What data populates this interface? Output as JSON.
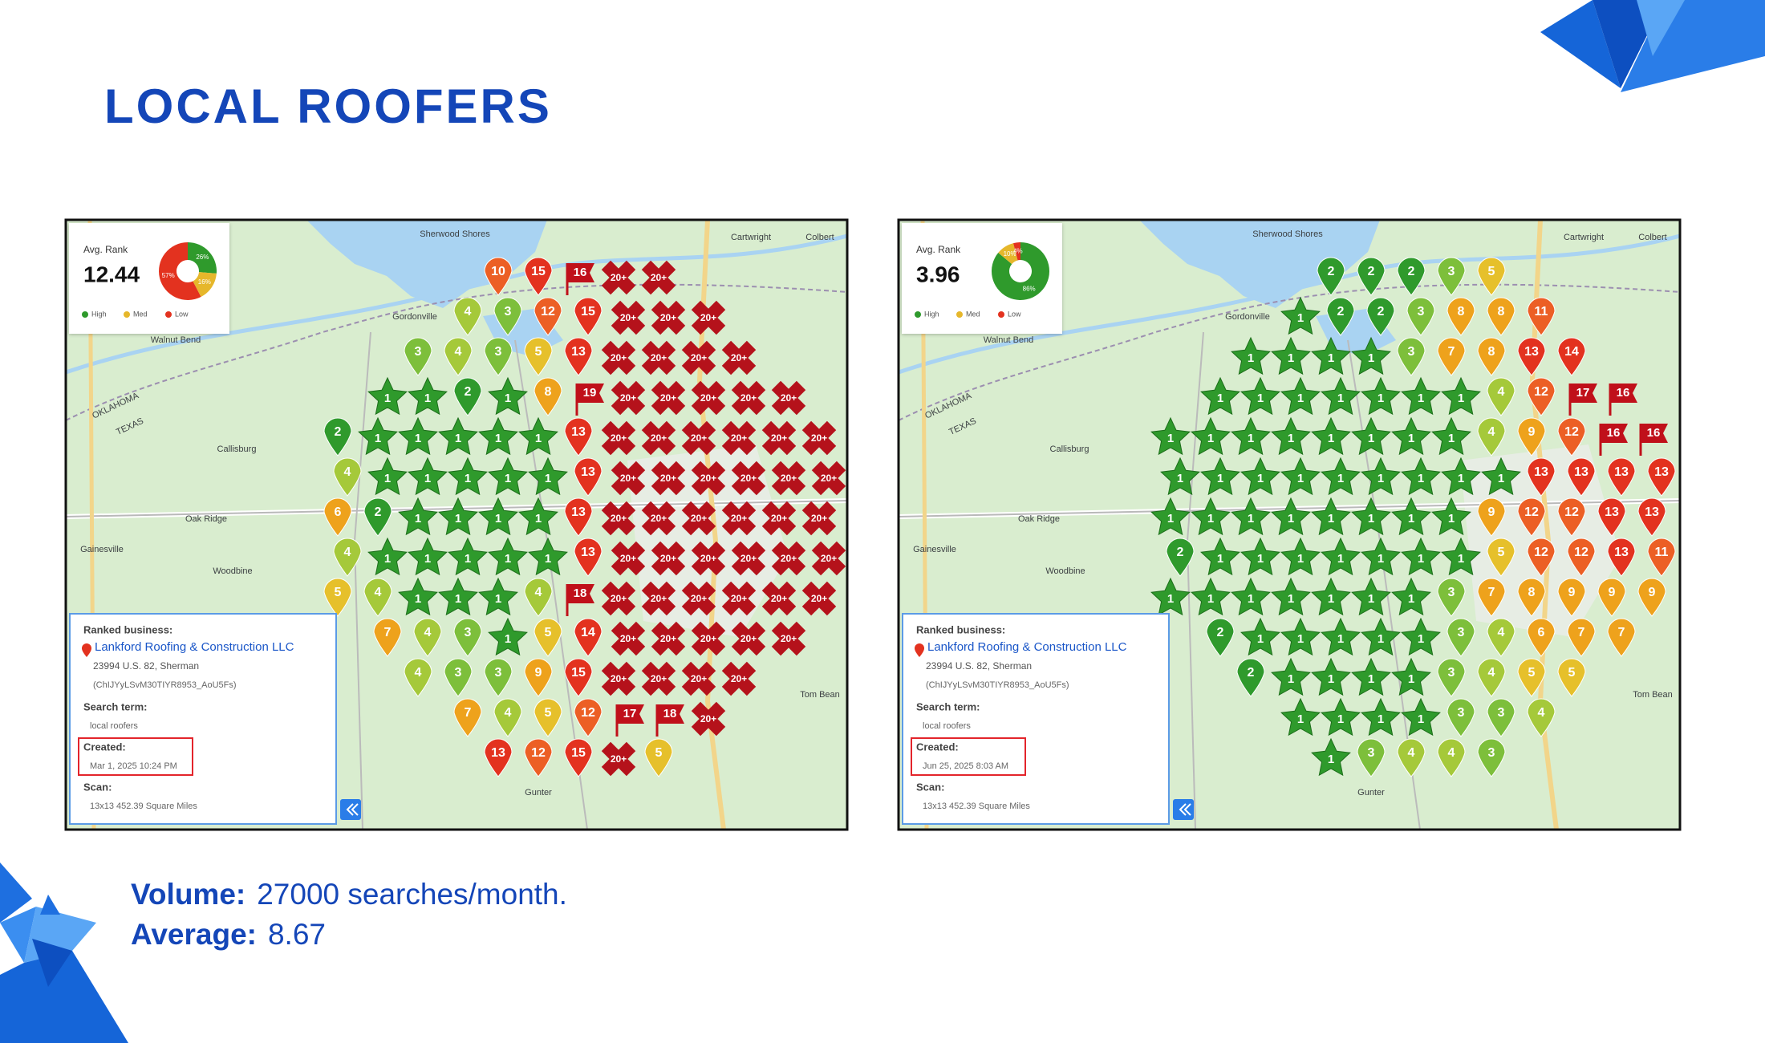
{
  "title": "LOCAL ROOFERS",
  "card_labels": {
    "avg_rank": "Avg. Rank",
    "ranked_business": "Ranked business:",
    "search_term": "Search term:",
    "created": "Created:",
    "scan": "Scan:"
  },
  "legend": [
    "High",
    "Med",
    "Low"
  ],
  "map_labels": [
    "Sherwood Shores",
    "Cartwright",
    "Colbert",
    "Gordonville",
    "Walnut Bend",
    "OKLAHOMA",
    "TEXAS",
    "Callisburg",
    "Oak Ridge",
    "Gainesville",
    "Woodbine",
    "Gunter",
    "Tom Bean"
  ],
  "panels": [
    {
      "avg_rank": "12.44",
      "donut": {
        "values": [
          26,
          16,
          57
        ],
        "value_labels": [
          "26%",
          "16%",
          "57%"
        ]
      },
      "business": "Lankford Roofing & Construction LLC",
      "address": "23994 U.S. 82, Sherman",
      "place_id": "(ChIJYyLSvM30TIYR8953_AoU5Fs)",
      "search_term": "local roofers",
      "created": "Mar 1, 2025 10:24 PM",
      "scan": "13x13 452.39 Square Miles",
      "grid": [
        [
          10,
          15,
          16,
          "20+",
          "20+"
        ],
        [
          4,
          3,
          12,
          15,
          "20+",
          "20+",
          "20+"
        ],
        [
          3,
          4,
          3,
          5,
          13,
          "20+",
          "20+",
          "20+",
          "20+"
        ],
        [
          1,
          1,
          2,
          1,
          8,
          19,
          "20+",
          "20+",
          "20+",
          "20+",
          "20+"
        ],
        [
          2,
          1,
          1,
          1,
          1,
          1,
          13,
          "20+",
          "20+",
          "20+",
          "20+",
          "20+",
          "20+"
        ],
        [
          4,
          1,
          1,
          1,
          1,
          1,
          13,
          "20+",
          "20+",
          "20+",
          "20+",
          "20+",
          "20+"
        ],
        [
          6,
          2,
          1,
          1,
          1,
          1,
          13,
          "20+",
          "20+",
          "20+",
          "20+",
          "20+",
          "20+"
        ],
        [
          4,
          1,
          1,
          1,
          1,
          1,
          13,
          "20+",
          "20+",
          "20+",
          "20+",
          "20+",
          "20+"
        ],
        [
          5,
          4,
          1,
          1,
          1,
          4,
          18,
          "20+",
          "20+",
          "20+",
          "20+",
          "20+",
          "20+"
        ],
        [
          7,
          4,
          3,
          1,
          5,
          14,
          "20+",
          "20+",
          "20+",
          "20+",
          "20+"
        ],
        [
          4,
          3,
          3,
          9,
          15,
          "20+",
          "20+",
          "20+",
          "20+"
        ],
        [
          7,
          4,
          5,
          12,
          17,
          18,
          "20+"
        ],
        [
          13,
          12,
          15,
          "20+",
          5
        ]
      ]
    },
    {
      "avg_rank": "3.96",
      "donut": {
        "values": [
          86,
          10,
          4
        ],
        "value_labels": [
          "86%",
          "10%",
          "4%"
        ]
      },
      "business": "Lankford Roofing & Construction LLC",
      "address": "23994 U.S. 82, Sherman",
      "place_id": "(ChIJYyLSvM30TIYR8953_AoU5Fs)",
      "search_term": "local roofers",
      "created": "Jun 25, 2025 8:03 AM",
      "scan": "13x13 452.39 Square Miles",
      "grid": [
        [
          2,
          2,
          2,
          3,
          5
        ],
        [
          1,
          2,
          2,
          3,
          8,
          8,
          11
        ],
        [
          1,
          1,
          1,
          1,
          3,
          7,
          8,
          13,
          14
        ],
        [
          1,
          1,
          1,
          1,
          1,
          1,
          1,
          4,
          12,
          17,
          16
        ],
        [
          1,
          1,
          1,
          1,
          1,
          1,
          1,
          1,
          4,
          9,
          12,
          16,
          16
        ],
        [
          1,
          1,
          1,
          1,
          1,
          1,
          1,
          1,
          1,
          13,
          13,
          13,
          13
        ],
        [
          1,
          1,
          1,
          1,
          1,
          1,
          1,
          1,
          9,
          12,
          12,
          13,
          13
        ],
        [
          2,
          1,
          1,
          1,
          1,
          1,
          1,
          1,
          5,
          12,
          12,
          13,
          11
        ],
        [
          1,
          1,
          1,
          1,
          1,
          1,
          1,
          3,
          7,
          8,
          9,
          9,
          9
        ],
        [
          2,
          1,
          1,
          1,
          1,
          1,
          3,
          4,
          6,
          7,
          7
        ],
        [
          2,
          1,
          1,
          1,
          1,
          3,
          4,
          5,
          5
        ],
        [
          1,
          1,
          1,
          1,
          3,
          3,
          4
        ],
        [
          1,
          3,
          4,
          4,
          3
        ]
      ]
    }
  ],
  "footer": {
    "volume_label": "Volume:",
    "volume": "27000 searches/month.",
    "average_label": "Average:",
    "average": "8.67"
  }
}
